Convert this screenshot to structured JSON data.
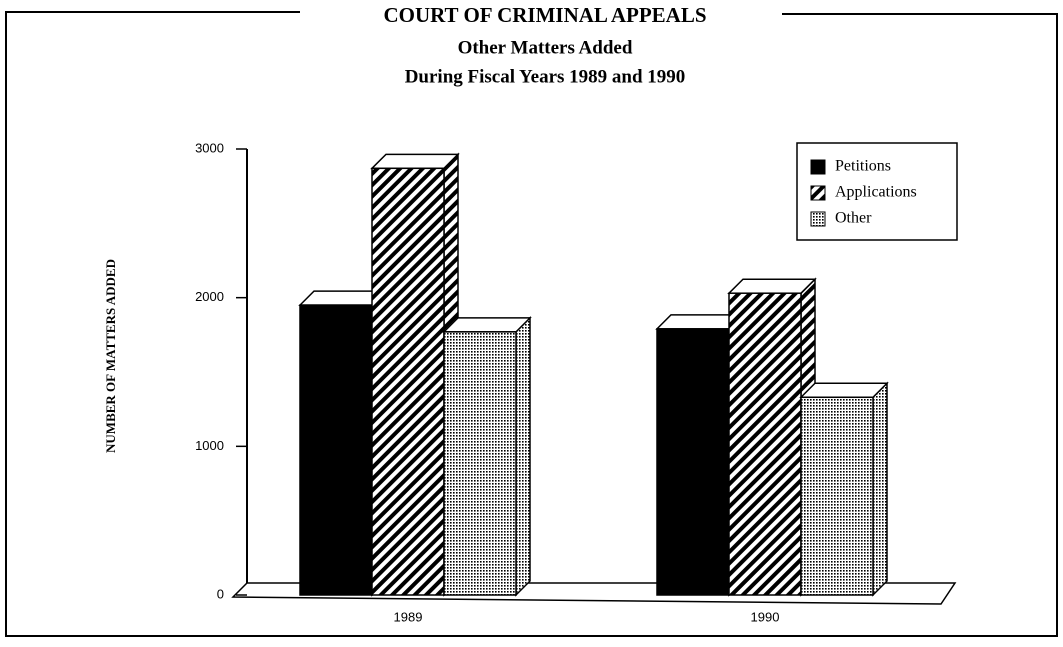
{
  "chart_data": {
    "type": "bar3d",
    "title": "COURT OF CRIMINAL APPEALS",
    "subtitle": [
      "Other Matters Added",
      "During Fiscal Years 1989 and 1990"
    ],
    "y_label": "NUMBER OF MATTERS ADDED",
    "categories": [
      "1989",
      "1990"
    ],
    "series": [
      {
        "name": "Petitions",
        "color": "#000000",
        "pattern": "solid",
        "values": [
          1950,
          1790
        ]
      },
      {
        "name": "Applications",
        "color": "#000000",
        "pattern": "hatch",
        "values": [
          2870,
          2030
        ]
      },
      {
        "name": "Other",
        "color": "#000000",
        "pattern": "dots",
        "values": [
          1770,
          1330
        ]
      }
    ],
    "ylim": [
      0,
      3000
    ],
    "yticks": [
      0,
      1000,
      2000,
      3000
    ],
    "legend": "top-right"
  }
}
